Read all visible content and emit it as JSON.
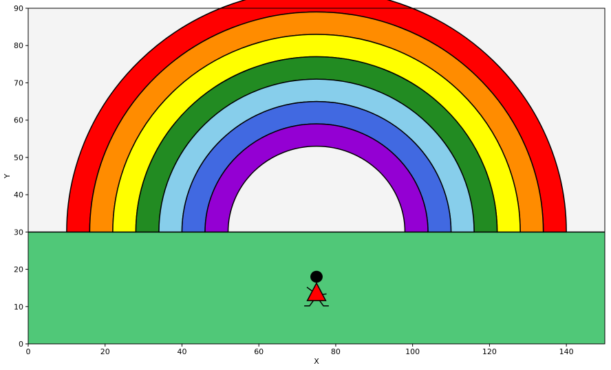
{
  "chart_data": {
    "type": "area",
    "xlabel": "X",
    "ylabel": "Y",
    "xlim": [
      0,
      150
    ],
    "ylim": [
      0,
      90
    ],
    "x_ticks": [
      0,
      20,
      40,
      60,
      80,
      100,
      120,
      140
    ],
    "y_ticks": [
      0,
      10,
      20,
      30,
      40,
      50,
      60,
      70,
      80,
      90
    ],
    "grid": false,
    "sky_color": "#f4f4f4",
    "ground": {
      "y_top": 30,
      "color": "#50c878"
    },
    "rainbow": {
      "center_x": 75,
      "base_y": 30,
      "bands": [
        {
          "color": "#ff0000",
          "outer_radius": 65,
          "inner_radius": 59
        },
        {
          "color": "#ff8c00",
          "outer_radius": 59,
          "inner_radius": 53
        },
        {
          "color": "#ffff00",
          "outer_radius": 53,
          "inner_radius": 47
        },
        {
          "color": "#228b22",
          "outer_radius": 47,
          "inner_radius": 41
        },
        {
          "color": "#87ceeb",
          "outer_radius": 41,
          "inner_radius": 35
        },
        {
          "color": "#4169e1",
          "outer_radius": 35,
          "inner_radius": 29
        },
        {
          "color": "#9400d3",
          "outer_radius": 29,
          "inner_radius": 23
        }
      ]
    },
    "figure": {
      "head": {
        "x": 75,
        "y": 18,
        "radius": 1.6,
        "color": "#000000"
      },
      "dress": {
        "color": "#ff0000",
        "points": [
          [
            75,
            16.3
          ],
          [
            72.6,
            11.6
          ],
          [
            77.4,
            11.6
          ]
        ]
      },
      "arms": [
        [
          [
            72.5,
            15.2
          ],
          [
            73.8,
            14.2
          ]
        ],
        [
          [
            76.2,
            13.2
          ],
          [
            77.6,
            13.4
          ]
        ]
      ],
      "legs": [
        [
          [
            74.2,
            11.6
          ],
          [
            73.2,
            10.2
          ],
          [
            71.8,
            10.2
          ]
        ],
        [
          [
            75.8,
            11.6
          ],
          [
            76.8,
            10.2
          ],
          [
            78.2,
            10.2
          ]
        ]
      ]
    }
  }
}
